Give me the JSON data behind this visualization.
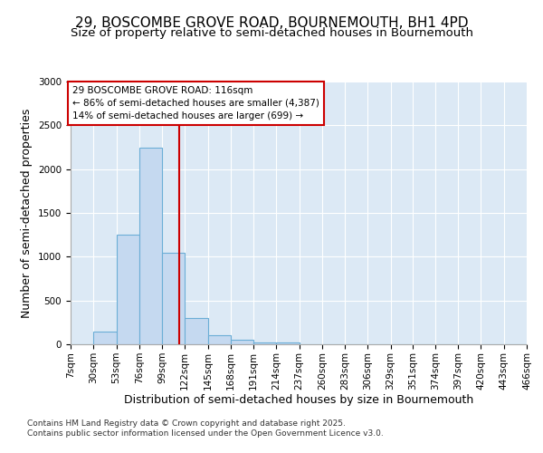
{
  "title_line1": "29, BOSCOMBE GROVE ROAD, BOURNEMOUTH, BH1 4PD",
  "title_line2": "Size of property relative to semi-detached houses in Bournemouth",
  "xlabel": "Distribution of semi-detached houses by size in Bournemouth",
  "ylabel": "Number of semi-detached properties",
  "bin_edges": [
    7,
    30,
    53,
    76,
    99,
    122,
    145,
    168,
    191,
    214,
    237,
    260,
    283,
    306,
    329,
    351,
    374,
    397,
    420,
    443,
    466
  ],
  "bar_heights": [
    0,
    150,
    1250,
    2250,
    1050,
    300,
    100,
    50,
    25,
    25,
    0,
    0,
    0,
    0,
    0,
    0,
    0,
    0,
    0,
    0
  ],
  "bar_color": "#c5d9f0",
  "bar_edgecolor": "#6baed6",
  "property_size": 116,
  "vline_color": "#cc0000",
  "annotation_text": "29 BOSCOMBE GROVE ROAD: 116sqm\n← 86% of semi-detached houses are smaller (4,387)\n14% of semi-detached houses are larger (699) →",
  "annotation_box_color": "#ffffff",
  "annotation_box_edgecolor": "#cc0000",
  "ylim": [
    0,
    3000
  ],
  "yticks": [
    0,
    500,
    1000,
    1500,
    2000,
    2500,
    3000
  ],
  "figure_background_color": "#ffffff",
  "plot_background_color": "#dce9f5",
  "footer_line1": "Contains HM Land Registry data © Crown copyright and database right 2025.",
  "footer_line2": "Contains public sector information licensed under the Open Government Licence v3.0.",
  "tick_label_fontsize": 7.5,
  "axis_label_fontsize": 9,
  "title_fontsize1": 11,
  "title_fontsize2": 9.5,
  "annotation_fontsize": 7.5,
  "footer_fontsize": 6.5
}
